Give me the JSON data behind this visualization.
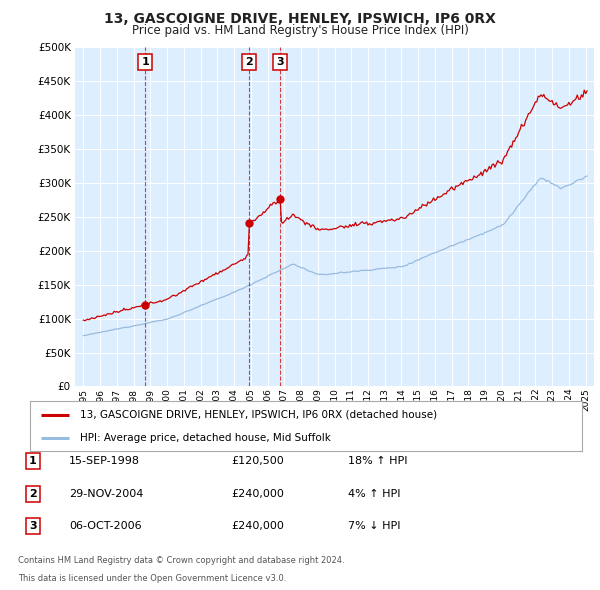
{
  "title": "13, GASCOIGNE DRIVE, HENLEY, IPSWICH, IP6 0RX",
  "subtitle": "Price paid vs. HM Land Registry's House Price Index (HPI)",
  "legend_label_red": "13, GASCOIGNE DRIVE, HENLEY, IPSWICH, IP6 0RX (detached house)",
  "legend_label_blue": "HPI: Average price, detached house, Mid Suffolk",
  "footer1": "Contains HM Land Registry data © Crown copyright and database right 2024.",
  "footer2": "This data is licensed under the Open Government Licence v3.0.",
  "transactions": [
    {
      "num": 1,
      "date": "15-SEP-1998",
      "price": "£120,500",
      "hpi_diff": "18% ↑ HPI",
      "x_year": 1998.71,
      "y_val": 120500
    },
    {
      "num": 2,
      "date": "29-NOV-2004",
      "price": "£240,000",
      "hpi_diff": "4% ↑ HPI",
      "x_year": 2004.91,
      "y_val": 240000
    },
    {
      "num": 3,
      "date": "06-OCT-2006",
      "price": "£240,000",
      "hpi_diff": "7% ↓ HPI",
      "x_year": 2006.77,
      "y_val": 240000
    }
  ],
  "ylim": [
    0,
    500000
  ],
  "yticks": [
    0,
    50000,
    100000,
    150000,
    200000,
    250000,
    300000,
    350000,
    400000,
    450000,
    500000
  ],
  "xlim_start": 1994.5,
  "xlim_end": 2025.5,
  "fig_bg": "#ffffff",
  "plot_bg": "#ddeeff",
  "grid_color": "#ffffff",
  "red_color": "#cc0000",
  "blue_color": "#99bbdd"
}
